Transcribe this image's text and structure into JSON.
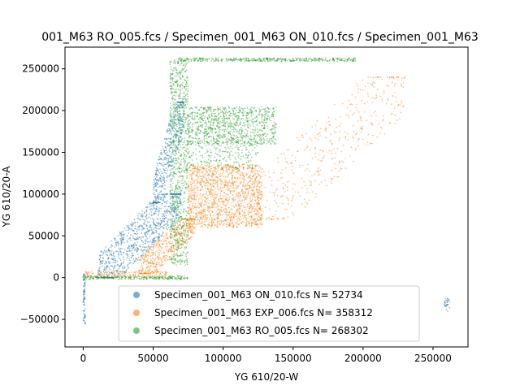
{
  "chart_data": {
    "type": "scatter",
    "title": "001_M63 RO_005.fcs / Specimen_001_M63 ON_010.fcs / Specimen_001_M63",
    "xlabel": "YG 610/20-W",
    "ylabel": "YG 610/20-A",
    "xlim": [
      -13000,
      275000
    ],
    "ylim": [
      -83000,
      276000
    ],
    "x_ticks": [
      0,
      50000,
      100000,
      150000,
      200000,
      250000
    ],
    "x_tick_labels": [
      "0",
      "50000",
      "100000",
      "150000",
      "200000",
      "250000"
    ],
    "y_ticks": [
      -50000,
      0,
      50000,
      100000,
      150000,
      200000,
      250000
    ],
    "y_tick_labels": [
      "−50000",
      "0",
      "50000",
      "100000",
      "150000",
      "200000",
      "250000"
    ],
    "grid": false,
    "legend_position": "lower-center",
    "series": [
      {
        "name": "Specimen_001_M63 ON_010.fcs  N= 52734",
        "color": "#1f77b4",
        "clusters": [
          {
            "x": [
              10000,
              70000
            ],
            "y": [
              0,
              100000
            ],
            "n": 900,
            "diag": true
          },
          {
            "x": [
              50000,
              72000
            ],
            "y": [
              90000,
              210000
            ],
            "n": 450,
            "diag": true
          },
          {
            "x": [
              0,
              1500
            ],
            "y": [
              -55000,
              5000
            ],
            "n": 80
          },
          {
            "x": [
              258000,
              262000
            ],
            "y": [
              -40000,
              -25000
            ],
            "n": 30
          }
        ]
      },
      {
        "name": "Specimen_001_M63 EXP_006.fcs  N= 358312",
        "color": "#ff7f0e",
        "clusters": [
          {
            "x": [
              75000,
              128000
            ],
            "y": [
              60000,
              135000
            ],
            "n": 1400
          },
          {
            "x": [
              40000,
              80000
            ],
            "y": [
              5000,
              70000
            ],
            "n": 500,
            "diag": true
          },
          {
            "x": [
              120000,
              230000
            ],
            "y": [
              70000,
              240000
            ],
            "n": 450,
            "diag": true
          },
          {
            "x": [
              0,
              60000
            ],
            "y": [
              0,
              8000
            ],
            "n": 180
          }
        ]
      },
      {
        "name": "Specimen_001_M63 RO_005.fcs  N= 268302",
        "color": "#2ca02c",
        "clusters": [
          {
            "x": [
              62000,
              75000
            ],
            "y": [
              15000,
              262000
            ],
            "n": 900
          },
          {
            "x": [
              75000,
              138000
            ],
            "y": [
              160000,
              205000
            ],
            "n": 900
          },
          {
            "x": [
              68000,
              195000
            ],
            "y": [
              259000,
              263000
            ],
            "n": 400
          },
          {
            "x": [
              75000,
              125000
            ],
            "y": [
              130000,
              165000
            ],
            "n": 250
          },
          {
            "x": [
              0,
              75000
            ],
            "y": [
              -2000,
              2000
            ],
            "n": 250
          }
        ]
      }
    ]
  }
}
